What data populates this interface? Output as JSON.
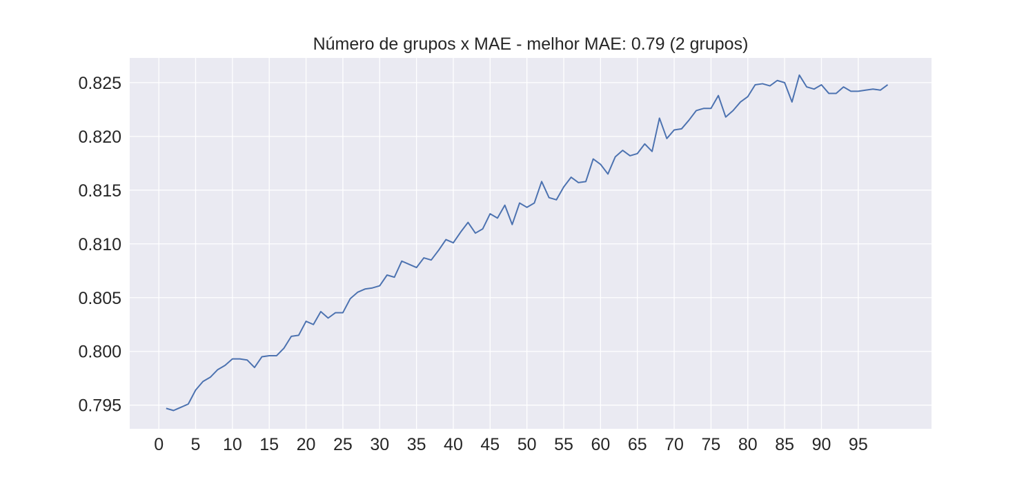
{
  "chart_data": {
    "type": "line",
    "title": "Número de grupos x MAE - melhor MAE:  0.79 (2 grupos)",
    "xlabel": "",
    "ylabel": "",
    "grid": true,
    "xlim": [
      -3.95,
      104.95
    ],
    "ylim": [
      0.7928,
      0.8273
    ],
    "x_ticks": [
      0,
      5,
      10,
      15,
      20,
      25,
      30,
      35,
      40,
      45,
      50,
      55,
      60,
      65,
      70,
      75,
      80,
      85,
      90,
      95
    ],
    "y_ticks": [
      0.795,
      0.8,
      0.805,
      0.81,
      0.815,
      0.82,
      0.825
    ],
    "y_tick_labels": [
      "0.795",
      "0.800",
      "0.805",
      "0.810",
      "0.815",
      "0.820",
      "0.825"
    ],
    "colors": {
      "background": "#eaeaf2",
      "grid": "#ffffff",
      "line": "#4c72b0",
      "text": "#262626"
    },
    "series": [
      {
        "x": [
          1,
          2,
          3,
          4,
          5,
          6,
          7,
          8,
          9,
          10,
          11,
          12,
          13,
          14,
          15,
          16,
          17,
          18,
          19,
          20,
          21,
          22,
          23,
          24,
          25,
          26,
          27,
          28,
          29,
          30,
          31,
          32,
          33,
          34,
          35,
          36,
          37,
          38,
          39,
          40,
          41,
          42,
          43,
          44,
          45,
          46,
          47,
          48,
          49,
          50,
          51,
          52,
          53,
          54,
          55,
          56,
          57,
          58,
          59,
          60,
          61,
          62,
          63,
          64,
          65,
          66,
          67,
          68,
          69,
          70,
          71,
          72,
          73,
          74,
          75,
          76,
          77,
          78,
          79,
          80,
          81,
          82,
          83,
          84,
          85,
          86,
          87,
          88,
          89,
          90,
          91,
          92,
          93,
          94,
          95,
          96,
          97,
          98,
          99
        ],
        "values": [
          0.7947,
          0.7945,
          0.7948,
          0.7951,
          0.7964,
          0.7972,
          0.7976,
          0.7983,
          0.7987,
          0.7993,
          0.7993,
          0.7992,
          0.7985,
          0.7995,
          0.7996,
          0.7996,
          0.8003,
          0.8014,
          0.8015,
          0.8028,
          0.8025,
          0.8037,
          0.8031,
          0.8036,
          0.8036,
          0.8049,
          0.8055,
          0.8058,
          0.8059,
          0.8061,
          0.8071,
          0.8069,
          0.8084,
          0.8081,
          0.8078,
          0.8087,
          0.8085,
          0.8094,
          0.8104,
          0.8101,
          0.8111,
          0.812,
          0.811,
          0.8114,
          0.8128,
          0.8124,
          0.8136,
          0.8118,
          0.8138,
          0.8134,
          0.8138,
          0.8158,
          0.8143,
          0.8141,
          0.8153,
          0.8162,
          0.8157,
          0.8158,
          0.8179,
          0.8174,
          0.8165,
          0.8181,
          0.8187,
          0.8182,
          0.8184,
          0.8193,
          0.8186,
          0.8217,
          0.8198,
          0.8206,
          0.8207,
          0.8215,
          0.8224,
          0.8226,
          0.8226,
          0.8238,
          0.8218,
          0.8224,
          0.8232,
          0.8237,
          0.8248,
          0.8249,
          0.8247,
          0.8252,
          0.825,
          0.8232,
          0.8257,
          0.8246,
          0.8244,
          0.8248,
          0.824,
          0.824,
          0.8246,
          0.8242,
          0.8242,
          0.8243,
          0.8244,
          0.8243,
          0.8248
        ]
      }
    ]
  }
}
